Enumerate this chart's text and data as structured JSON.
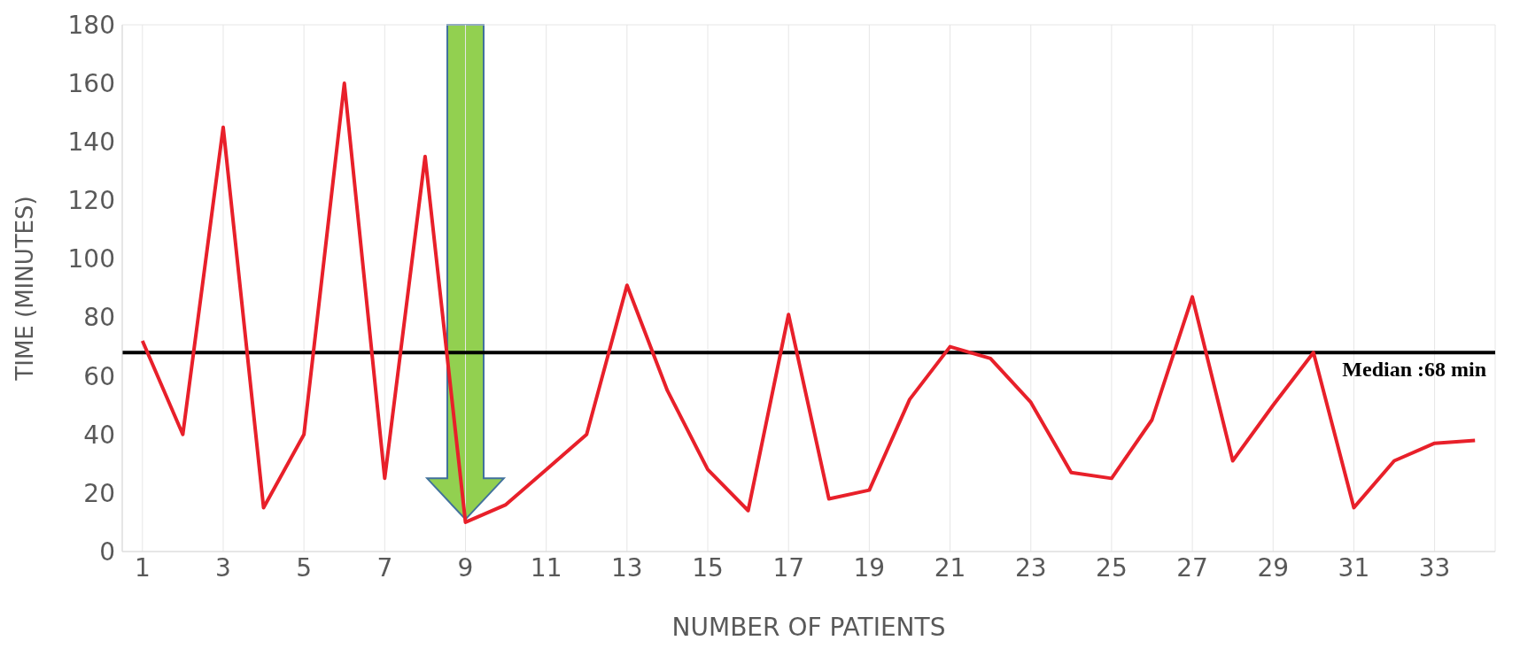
{
  "chart_data": {
    "type": "line",
    "xlabel": "NUMBER OF PATIENTS",
    "ylabel": "TIME (MINUTES)",
    "x": [
      1,
      2,
      3,
      4,
      5,
      6,
      7,
      8,
      9,
      10,
      11,
      12,
      13,
      14,
      15,
      16,
      17,
      18,
      19,
      20,
      21,
      22,
      23,
      24,
      25,
      26,
      27,
      28,
      29,
      30,
      31,
      32,
      33,
      34
    ],
    "series": [
      {
        "color": "#e8202a",
        "values": [
          72,
          40,
          145,
          15,
          40,
          160,
          25,
          135,
          10,
          16,
          28,
          40,
          91,
          55,
          28,
          14,
          81,
          18,
          21,
          52,
          70,
          66,
          51,
          27,
          25,
          45,
          87,
          31,
          50,
          68,
          15,
          31,
          37,
          38
        ]
      }
    ],
    "xlim": [
      0.5,
      34.5
    ],
    "xticks": [
      1,
      3,
      5,
      7,
      9,
      11,
      13,
      15,
      17,
      19,
      21,
      23,
      25,
      27,
      29,
      31,
      33
    ],
    "ylim": [
      0,
      180
    ],
    "yticks": [
      0,
      20,
      40,
      60,
      80,
      100,
      120,
      140,
      160,
      180
    ],
    "ref_lines": [
      {
        "axis": "y",
        "value": 68,
        "label": "Median :68 min",
        "color": "#000000"
      }
    ],
    "grid": true,
    "marker": "none",
    "line_style": "solid",
    "legend": false
  }
}
